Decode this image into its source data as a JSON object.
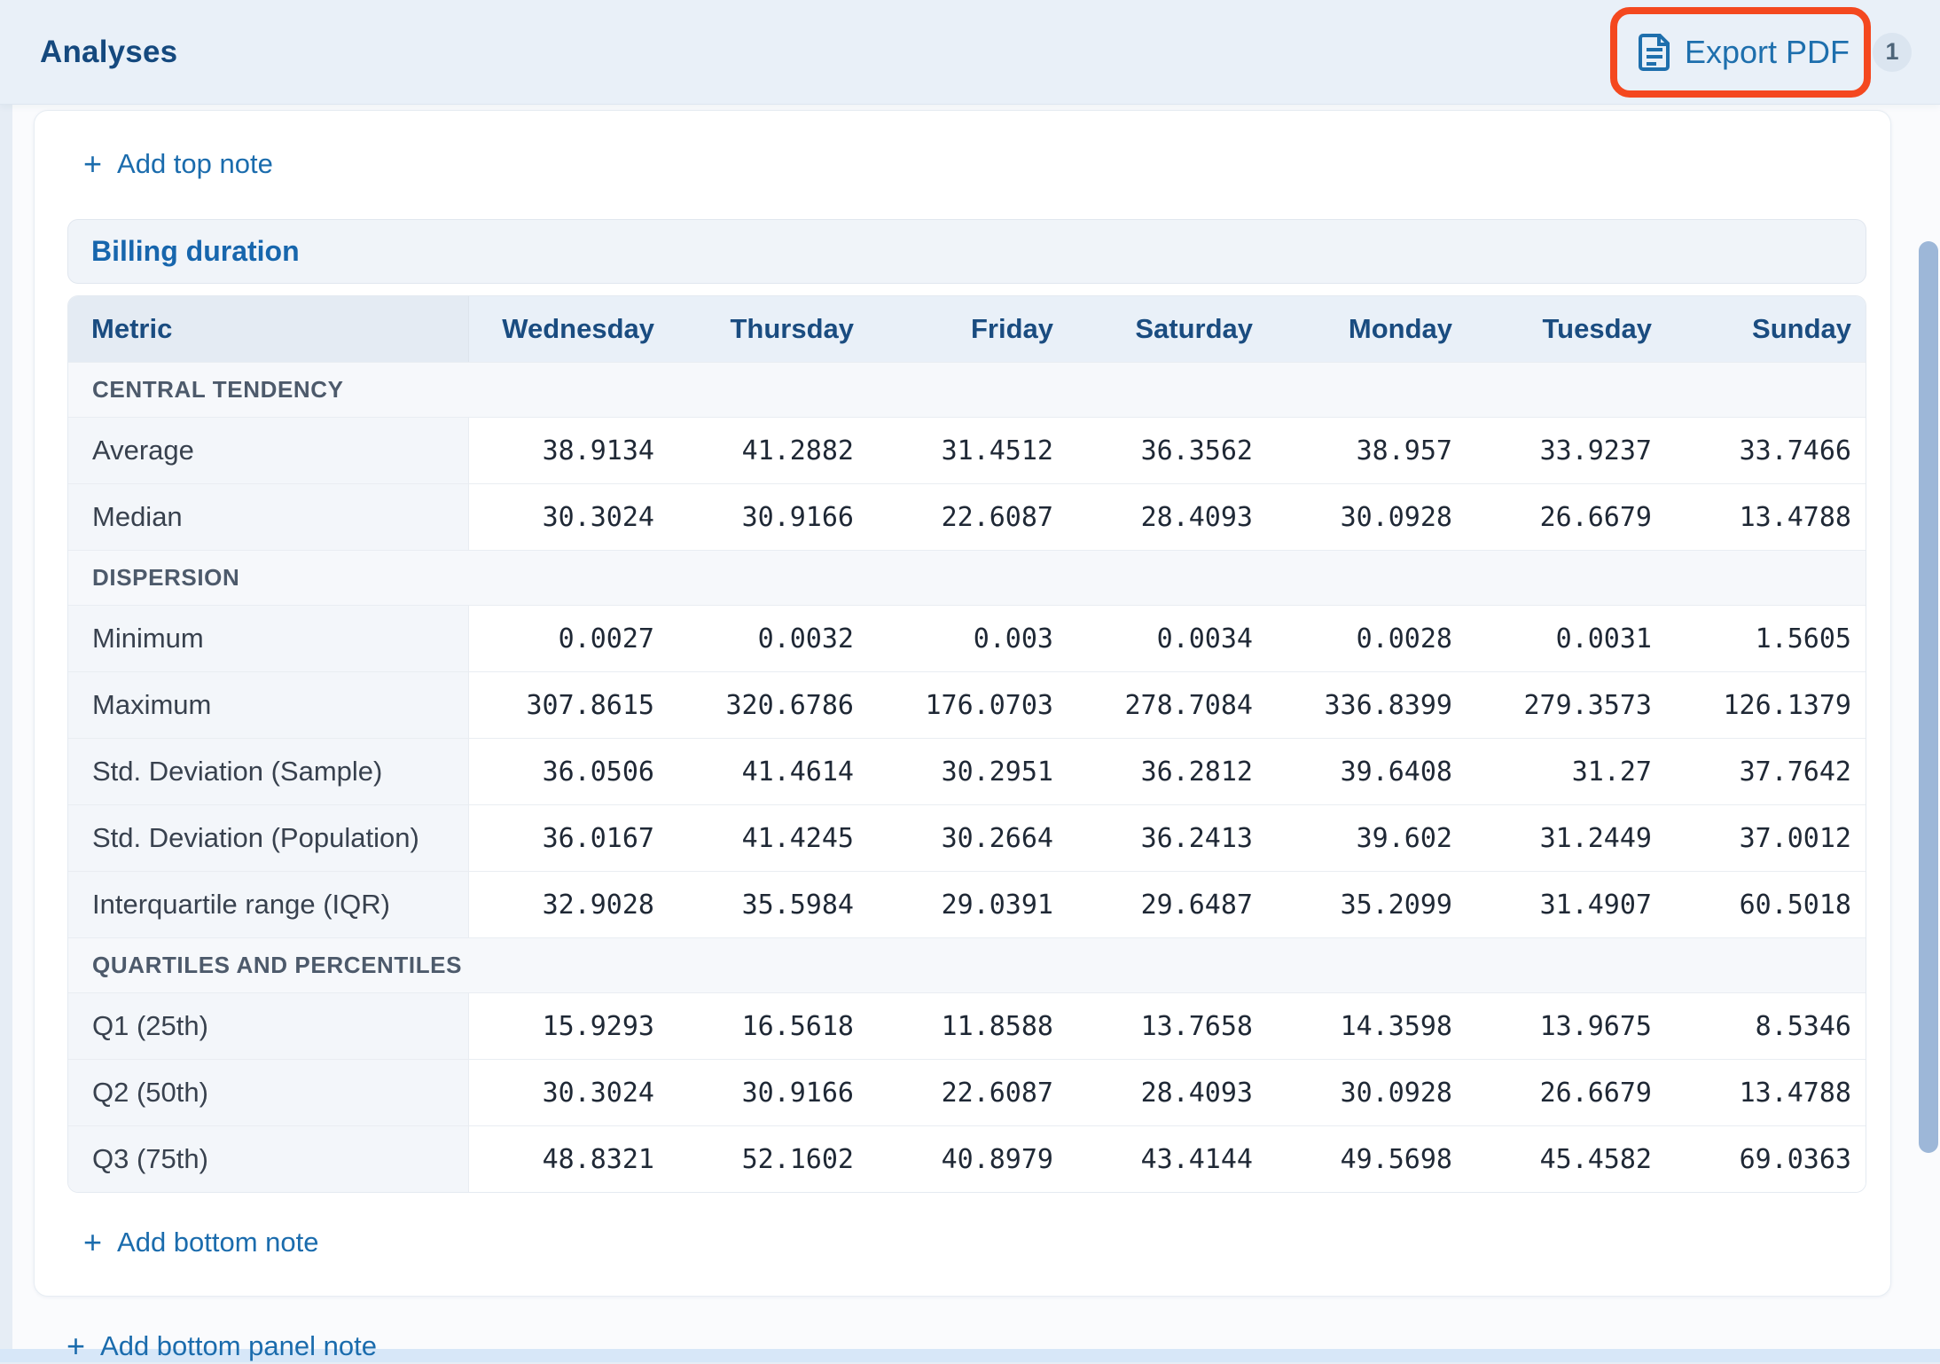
{
  "header": {
    "title": "Analyses",
    "export": {
      "label": "Export PDF",
      "badge": "1"
    }
  },
  "icons": {
    "plus": "+"
  },
  "panel": {
    "add_top_note": "Add top note",
    "title": "Billing duration",
    "table": {
      "metric_header": "Metric",
      "columns": [
        "Wednesday",
        "Thursday",
        "Friday",
        "Saturday",
        "Monday",
        "Tuesday",
        "Sunday"
      ],
      "sections": [
        {
          "label": "CENTRAL TENDENCY",
          "rows": [
            {
              "label": "Average",
              "values": [
                "38.9134",
                "41.2882",
                "31.4512",
                "36.3562",
                "38.957",
                "33.9237",
                "33.7466"
              ]
            },
            {
              "label": "Median",
              "values": [
                "30.3024",
                "30.9166",
                "22.6087",
                "28.4093",
                "30.0928",
                "26.6679",
                "13.4788"
              ]
            }
          ]
        },
        {
          "label": "DISPERSION",
          "rows": [
            {
              "label": "Minimum",
              "values": [
                "0.0027",
                "0.0032",
                "0.003",
                "0.0034",
                "0.0028",
                "0.0031",
                "1.5605"
              ]
            },
            {
              "label": "Maximum",
              "values": [
                "307.8615",
                "320.6786",
                "176.0703",
                "278.7084",
                "336.8399",
                "279.3573",
                "126.1379"
              ]
            },
            {
              "label": "Std. Deviation (Sample)",
              "values": [
                "36.0506",
                "41.4614",
                "30.2951",
                "36.2812",
                "39.6408",
                "31.27",
                "37.7642"
              ]
            },
            {
              "label": "Std. Deviation (Population)",
              "values": [
                "36.0167",
                "41.4245",
                "30.2664",
                "36.2413",
                "39.602",
                "31.2449",
                "37.0012"
              ]
            },
            {
              "label": "Interquartile range (IQR)",
              "values": [
                "32.9028",
                "35.5984",
                "29.0391",
                "29.6487",
                "35.2099",
                "31.4907",
                "60.5018"
              ]
            }
          ]
        },
        {
          "label": "QUARTILES AND PERCENTILES",
          "rows": [
            {
              "label": "Q1 (25th)",
              "values": [
                "15.9293",
                "16.5618",
                "11.8588",
                "13.7658",
                "14.3598",
                "13.9675",
                "8.5346"
              ]
            },
            {
              "label": "Q2 (50th)",
              "values": [
                "30.3024",
                "30.9166",
                "22.6087",
                "28.4093",
                "30.0928",
                "26.6679",
                "13.4788"
              ]
            },
            {
              "label": "Q3 (75th)",
              "values": [
                "48.8321",
                "52.1602",
                "40.8979",
                "43.4144",
                "49.5698",
                "45.4582",
                "69.0363"
              ]
            }
          ]
        }
      ]
    },
    "add_bottom_note": "Add bottom note"
  },
  "page_footer": {
    "add_bottom_panel_note": "Add bottom panel note"
  },
  "colors": {
    "annotation_red": "#F4481F",
    "accent_blue": "#1E6FAD",
    "title_navy": "#15497E",
    "scrollbar_thumb": "#9DB7D8"
  }
}
